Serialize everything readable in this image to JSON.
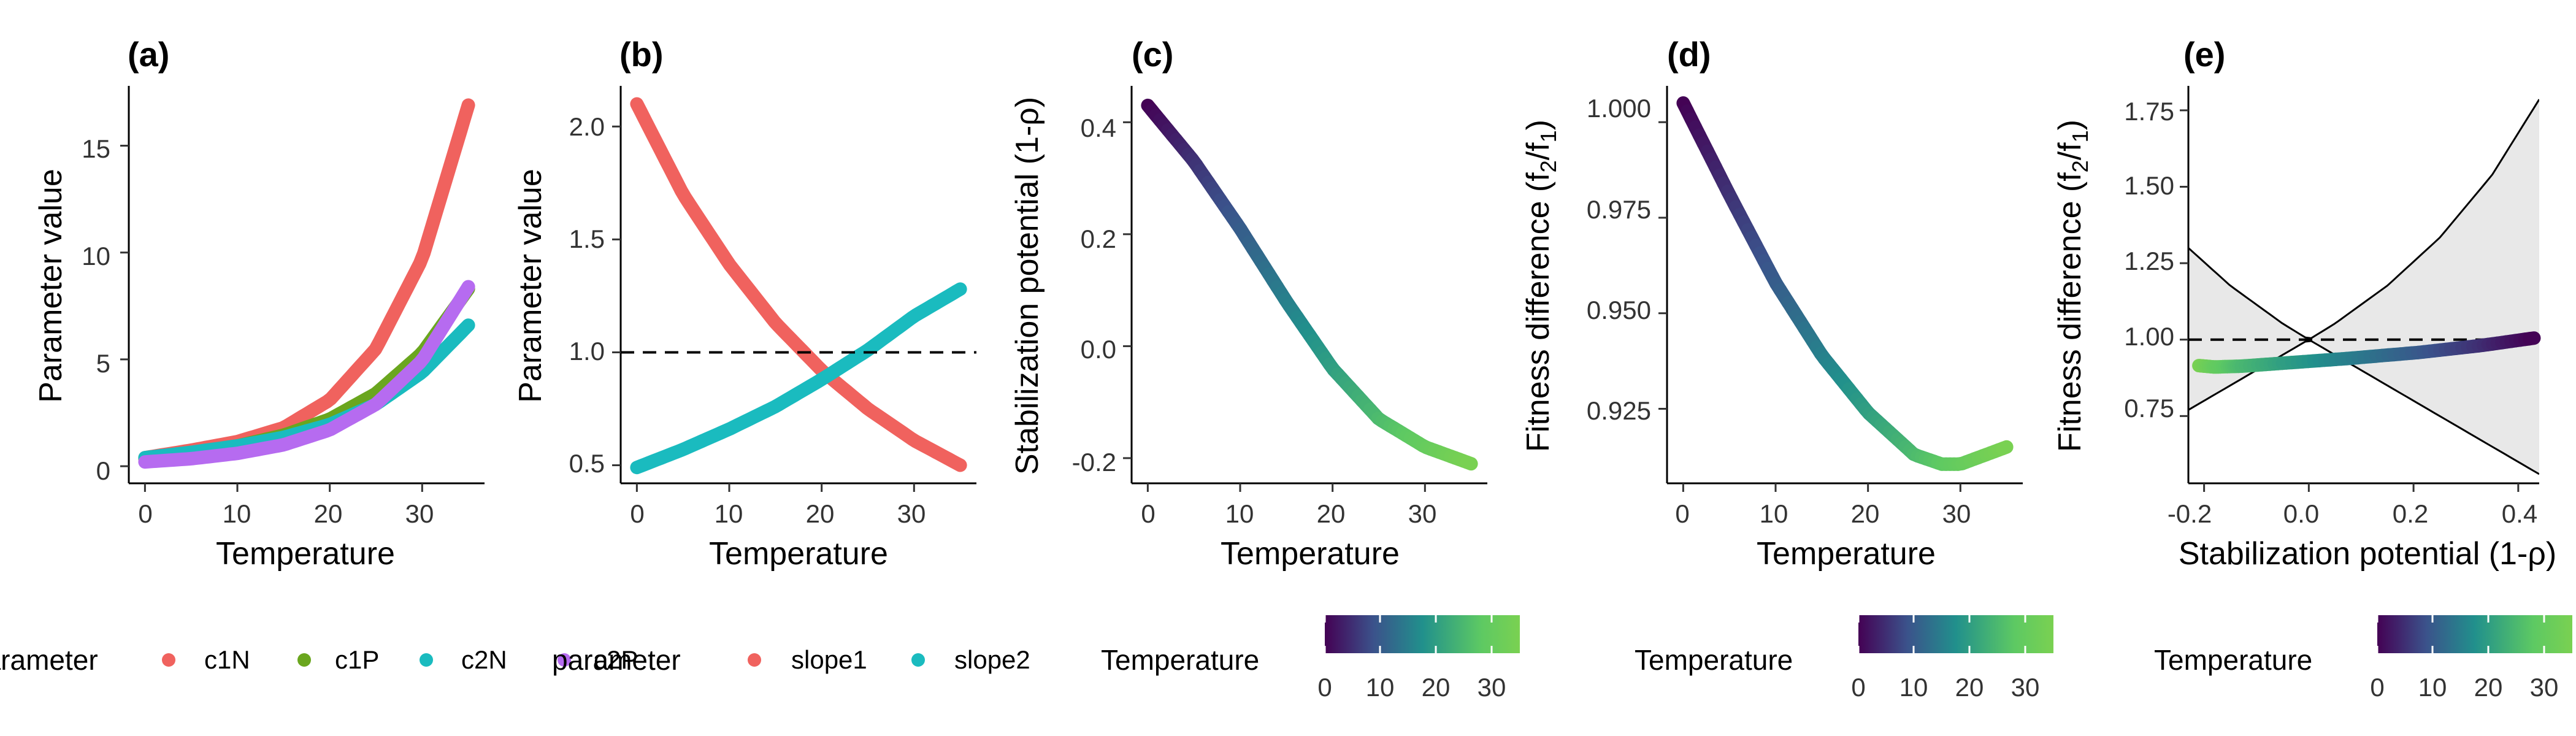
{
  "colors": {
    "c1N": "#F0625E",
    "c1P": "#6AA61E",
    "c2N": "#1ABBBF",
    "c2P": "#B66BF0",
    "slope1": "#F0625E",
    "slope2": "#1ABBBF",
    "viridis": [
      "#440154",
      "#3B528B",
      "#21908C",
      "#5DC963",
      "#7AD151"
    ],
    "ribbon": "#E8E8E8"
  },
  "chart_data": [
    {
      "id": "a",
      "panel_label": "(a)",
      "type": "line",
      "xlabel": "Temperature",
      "ylabel": "Parameter value",
      "xlim": [
        -1.75,
        36.75
      ],
      "ylim": [
        -0.8,
        17.8
      ],
      "xticks": [
        0,
        10,
        20,
        30
      ],
      "yticks": [
        0,
        5,
        10,
        15
      ],
      "series": [
        {
          "name": "c1N",
          "x": [
            0,
            5,
            10,
            15,
            20,
            25,
            30,
            35
          ],
          "y": [
            0.4,
            0.75,
            1.15,
            1.8,
            3.1,
            5.5,
            9.7,
            16.9
          ]
        },
        {
          "name": "c1P",
          "x": [
            0,
            5,
            10,
            15,
            20,
            25,
            30,
            35
          ],
          "y": [
            0.35,
            0.62,
            0.95,
            1.45,
            2.2,
            3.4,
            5.3,
            8.3
          ]
        },
        {
          "name": "c2N",
          "x": [
            0,
            5,
            10,
            15,
            20,
            25,
            30,
            35
          ],
          "y": [
            0.4,
            0.65,
            0.95,
            1.35,
            1.95,
            2.9,
            4.4,
            6.6
          ]
        },
        {
          "name": "c2P",
          "x": [
            0,
            5,
            10,
            15,
            20,
            25,
            30,
            35
          ],
          "y": [
            0.2,
            0.35,
            0.6,
            1.0,
            1.7,
            2.9,
            4.95,
            8.4
          ]
        }
      ],
      "legend": {
        "title": "parameter",
        "position": "bottom",
        "entries": [
          "c1N",
          "c1P",
          "c2N",
          "c2P"
        ]
      }
    },
    {
      "id": "b",
      "panel_label": "(b)",
      "type": "line",
      "xlabel": "Temperature",
      "ylabel": "Parameter value",
      "xlim": [
        -1.75,
        36.75
      ],
      "ylim": [
        0.42,
        2.18
      ],
      "xticks": [
        0,
        10,
        20,
        30
      ],
      "yticks": [
        0.5,
        1.0,
        1.5,
        2.0
      ],
      "reference_line": {
        "y": 1.0,
        "style": "dashed"
      },
      "series": [
        {
          "name": "slope1",
          "x": [
            0,
            5,
            10,
            15,
            20,
            25,
            30,
            35
          ],
          "y": [
            2.1,
            1.7,
            1.39,
            1.13,
            0.92,
            0.75,
            0.61,
            0.5
          ]
        },
        {
          "name": "slope2",
          "x": [
            0,
            5,
            10,
            15,
            20,
            25,
            30,
            35
          ],
          "y": [
            0.49,
            0.57,
            0.66,
            0.76,
            0.88,
            1.01,
            1.16,
            1.28
          ]
        }
      ],
      "legend": {
        "title": "parameter",
        "position": "bottom",
        "entries": [
          "slope1",
          "slope2"
        ]
      }
    },
    {
      "id": "c",
      "panel_label": "(c)",
      "type": "line",
      "xlabel": "Temperature",
      "ylabel": "Stabilization potential (1-ρ)",
      "xlim": [
        -1.75,
        36.75
      ],
      "ylim": [
        -0.245,
        0.465
      ],
      "xticks": [
        0,
        10,
        20,
        30
      ],
      "yticks": [
        -0.2,
        0.0,
        0.2,
        0.4
      ],
      "ytick_labels": [
        "-0.2",
        "0.0",
        "0.2",
        "0.4"
      ],
      "color_by": "x",
      "series": [
        {
          "x": [
            0,
            5,
            10,
            15,
            20,
            25,
            30,
            35
          ],
          "y": [
            0.43,
            0.33,
            0.21,
            0.08,
            -0.04,
            -0.13,
            -0.18,
            -0.21
          ]
        }
      ],
      "legend": {
        "title": "Temperature",
        "type": "colorbar",
        "ticks": [
          0,
          10,
          20,
          30
        ],
        "range": [
          0,
          35
        ]
      }
    },
    {
      "id": "d",
      "panel_label": "(d)",
      "type": "line",
      "xlabel": "Temperature",
      "ylabel_main": "Fitness difference (f",
      "ylabel_sub1": "2",
      "ylabel_mid": "/f",
      "ylabel_sub2": "1",
      "ylabel_end": ")",
      "xlim": [
        -1.75,
        36.75
      ],
      "ylim": [
        0.9055,
        1.0095
      ],
      "xticks": [
        0,
        10,
        20,
        30
      ],
      "yticks": [
        0.925,
        0.95,
        0.975,
        1.0
      ],
      "ytick_labels": [
        "0.925",
        "0.950",
        "0.975",
        "1.000"
      ],
      "color_by": "x",
      "series": [
        {
          "x": [
            0,
            5,
            10,
            15,
            20,
            25,
            28,
            30,
            35
          ],
          "y": [
            1.005,
            0.981,
            0.958,
            0.939,
            0.924,
            0.913,
            0.9105,
            0.9105,
            0.915
          ]
        }
      ],
      "legend": {
        "title": "Temperature",
        "type": "colorbar",
        "ticks": [
          0,
          10,
          20,
          30
        ],
        "range": [
          0,
          35
        ]
      }
    },
    {
      "id": "e",
      "panel_label": "(e)",
      "type": "line",
      "xlabel": "Stabilization potential (1-ρ)",
      "ylabel_main": "Fitness difference (f",
      "ylabel_sub1": "2",
      "ylabel_mid": "/f",
      "ylabel_sub2": "1",
      "ylabel_end": ")",
      "xlim": [
        -0.23,
        0.44
      ],
      "ylim": [
        0.53,
        1.83
      ],
      "xticks": [
        -0.2,
        0.0,
        0.2,
        0.4
      ],
      "xtick_labels": [
        "-0.2",
        "0.0",
        "0.2",
        "0.4"
      ],
      "yticks": [
        0.75,
        1.0,
        1.25,
        1.5,
        1.75
      ],
      "ytick_labels": [
        "0.75",
        "1.00",
        "1.25",
        "1.50",
        "1.75"
      ],
      "reference_line": {
        "y": 1.0,
        "style": "dashed"
      },
      "coexistence_region": {
        "x": [
          -0.23,
          -0.15,
          -0.05,
          0.0,
          0.05,
          0.15,
          0.25,
          0.35,
          0.44
        ],
        "upper": [
          1.3,
          1.1765,
          1.0526,
          1.0,
          1.0526,
          1.1765,
          1.3333,
          1.5385,
          1.7857
        ],
        "lower": [
          0.77,
          0.85,
          0.95,
          1.0,
          0.95,
          0.85,
          0.75,
          0.65,
          0.56
        ]
      },
      "color_by": "temperature",
      "series": [
        {
          "x": [
            -0.21,
            -0.18,
            -0.13,
            -0.04,
            0.08,
            0.21,
            0.33,
            0.43
          ],
          "y": [
            0.915,
            0.9105,
            0.913,
            0.924,
            0.939,
            0.958,
            0.981,
            1.005
          ],
          "temperature": [
            35,
            30,
            25,
            20,
            15,
            10,
            5,
            0
          ]
        }
      ],
      "legend": {
        "title": "Temperature",
        "type": "colorbar",
        "ticks": [
          0,
          10,
          20,
          30
        ],
        "range": [
          0,
          35
        ]
      }
    }
  ]
}
